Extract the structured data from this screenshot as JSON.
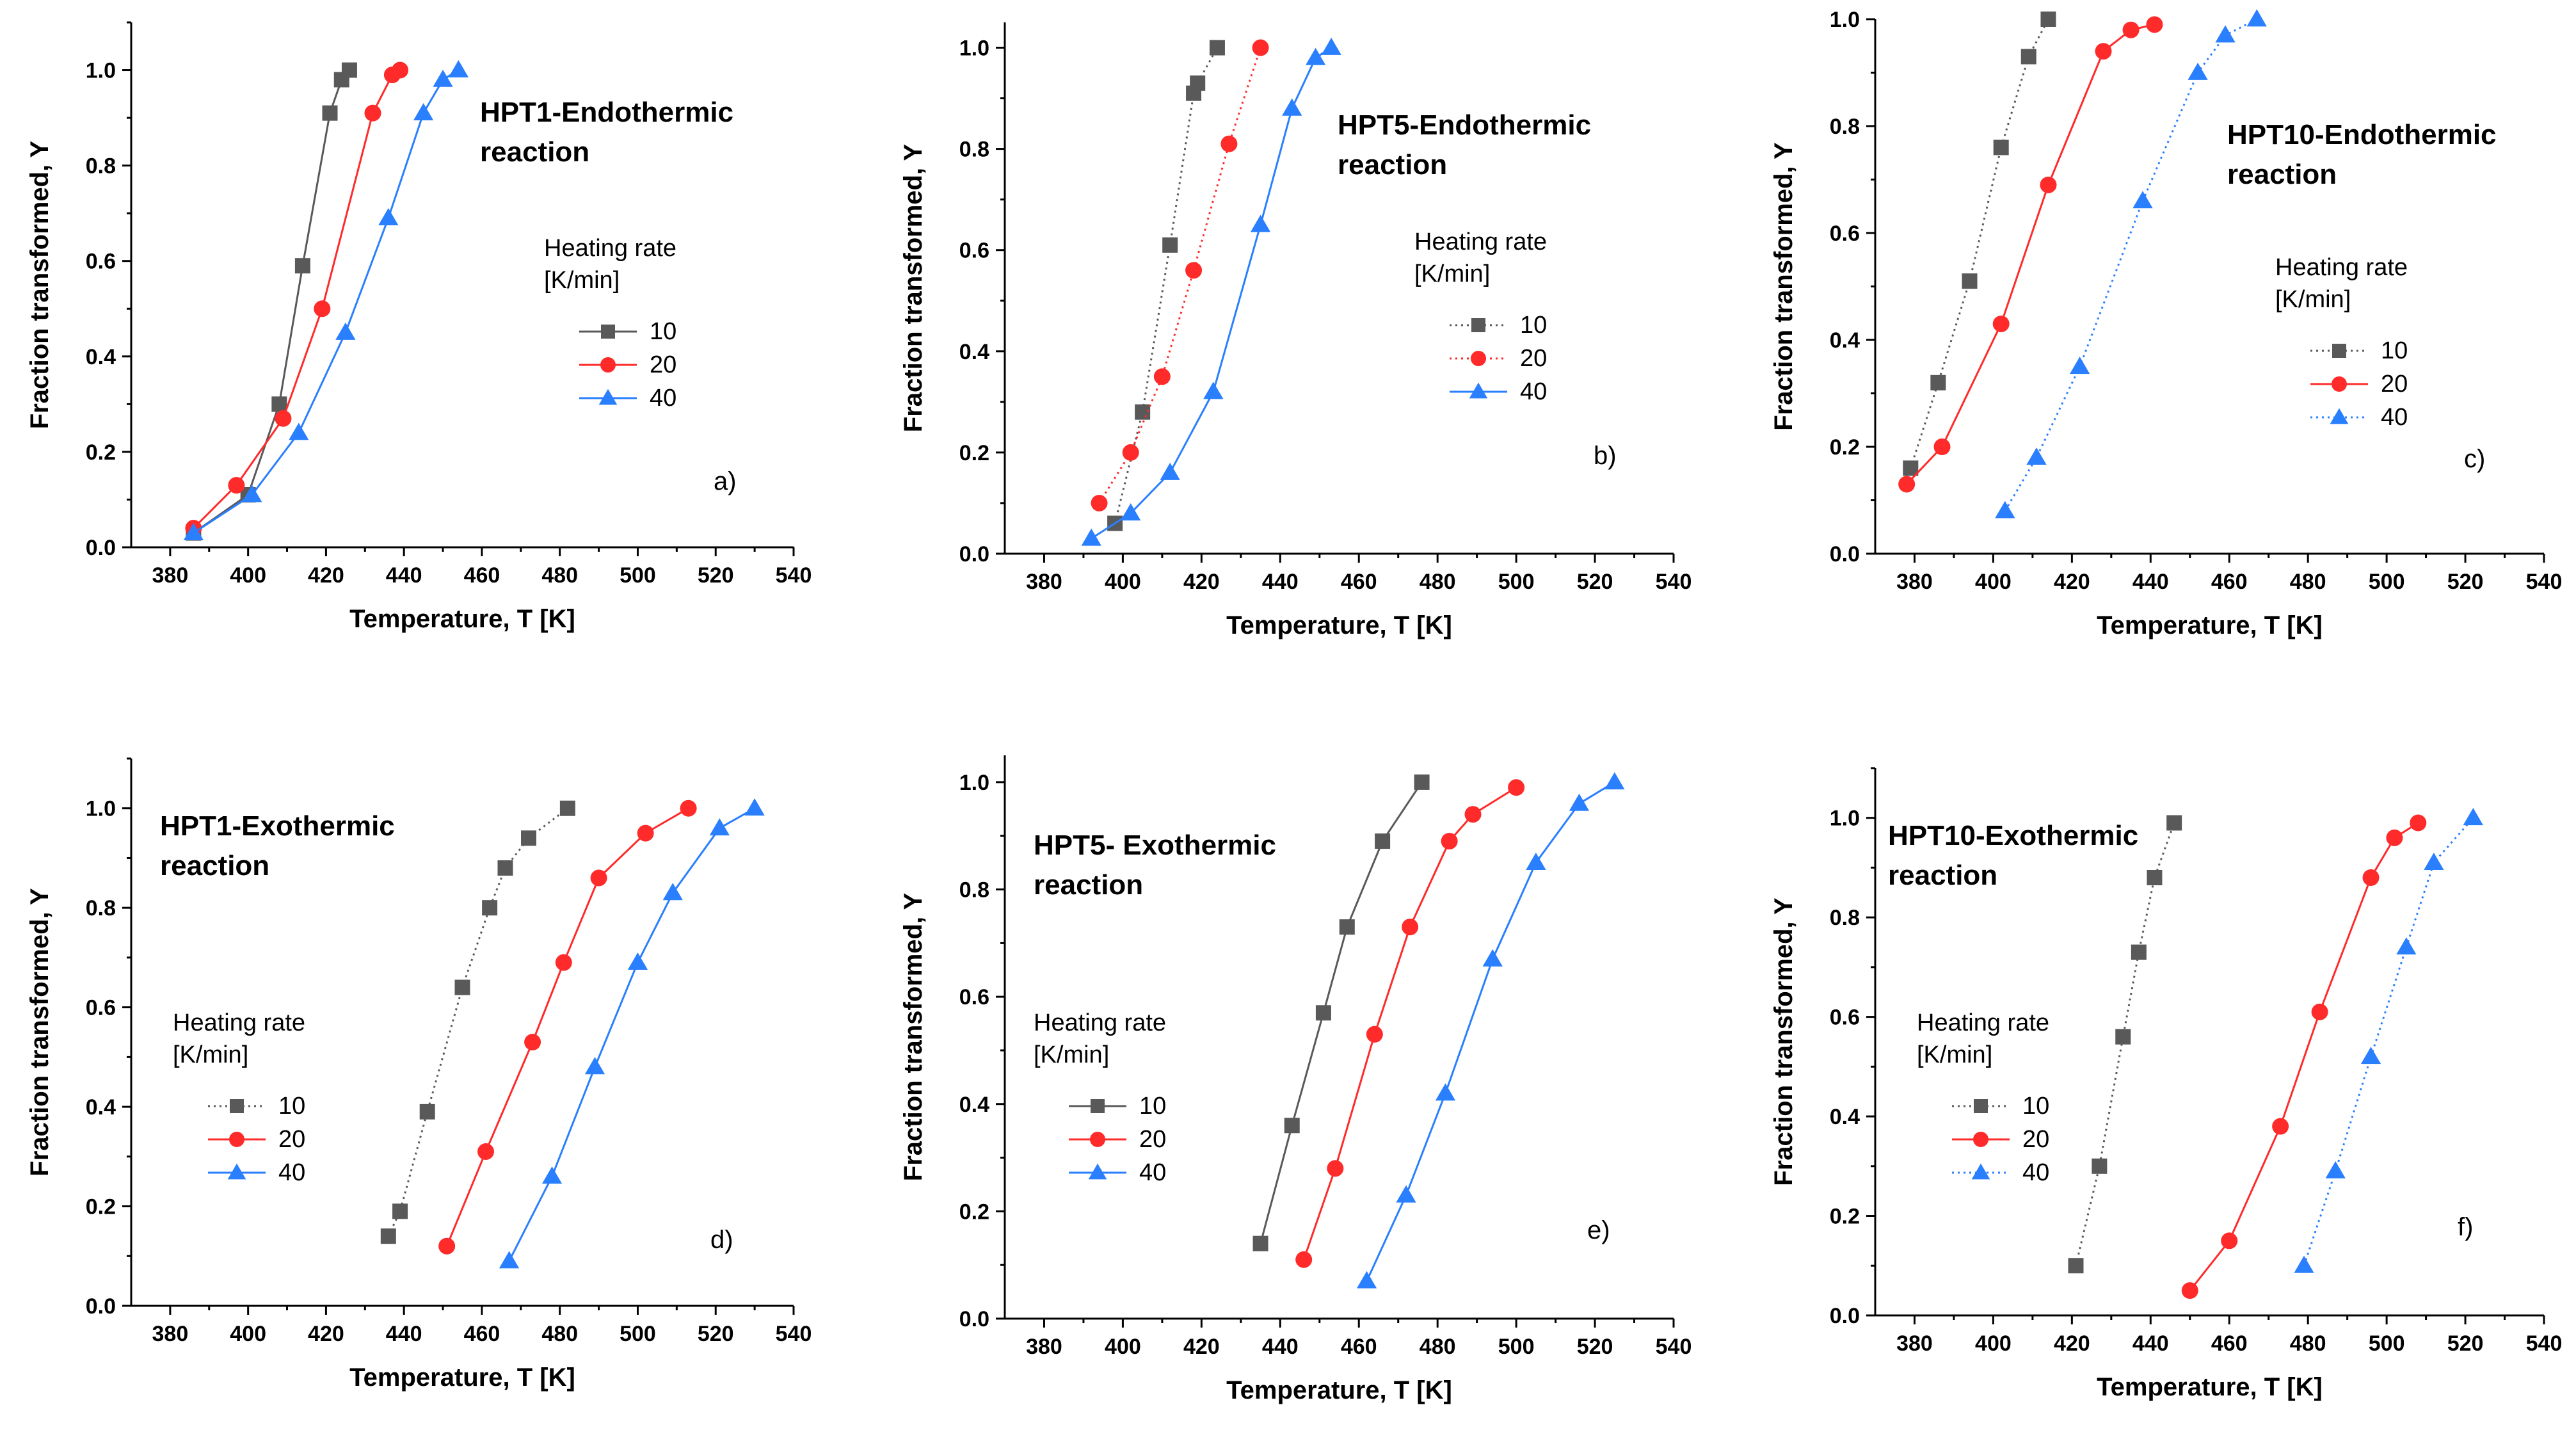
{
  "chart_data": [
    {
      "id": "a",
      "type": "line",
      "letter": "a)",
      "title_lines": [
        "HPT1-Endothermic",
        "reaction"
      ],
      "xlabel": "Temperature, T [K]",
      "ylabel": "Fraction transformed, Y",
      "xlim": [
        370,
        540
      ],
      "ylim": [
        0,
        1.1
      ],
      "xticks": [
        380,
        400,
        420,
        440,
        460,
        480,
        500,
        520,
        540
      ],
      "yticks": [
        0.0,
        0.2,
        0.4,
        0.6,
        0.8,
        1.0
      ],
      "legend_title_lines": [
        "Heating rate",
        "[K/min]"
      ],
      "series": [
        {
          "name": "10",
          "color": "#595959",
          "marker": "square",
          "line": "solid",
          "x": [
            386,
            400,
            408,
            414,
            421,
            424,
            426
          ],
          "y": [
            0.03,
            0.11,
            0.3,
            0.59,
            0.91,
            0.98,
            1.0
          ]
        },
        {
          "name": "20",
          "color": "#ff2a2a",
          "marker": "circle",
          "line": "solid",
          "x": [
            386,
            397,
            409,
            419,
            432,
            437,
            439
          ],
          "y": [
            0.04,
            0.13,
            0.27,
            0.5,
            0.91,
            0.99,
            1.0
          ]
        },
        {
          "name": "40",
          "color": "#2a7fff",
          "marker": "triangle",
          "line": "solid",
          "x": [
            386,
            401,
            413,
            425,
            436,
            445,
            450,
            454
          ],
          "y": [
            0.03,
            0.11,
            0.24,
            0.45,
            0.69,
            0.91,
            0.98,
            1.0
          ]
        }
      ]
    },
    {
      "id": "b",
      "type": "line",
      "letter": "b)",
      "title_lines": [
        "HPT5-Endothermic",
        "reaction"
      ],
      "xlabel": "Temperature, T [K]",
      "ylabel": "Fraction transformed, Y",
      "xlim": [
        370,
        540
      ],
      "ylim": [
        0,
        1.05
      ],
      "xticks": [
        380,
        400,
        420,
        440,
        460,
        480,
        500,
        520,
        540
      ],
      "yticks": [
        0.0,
        0.2,
        0.4,
        0.6,
        0.8,
        1.0
      ],
      "legend_title_lines": [
        "Heating rate",
        "[K/min]"
      ],
      "series": [
        {
          "name": "10",
          "color": "#595959",
          "marker": "square",
          "line": "dotted",
          "x": [
            398,
            405,
            412,
            418,
            419,
            424
          ],
          "y": [
            0.06,
            0.28,
            0.61,
            0.91,
            0.93,
            1.0
          ]
        },
        {
          "name": "20",
          "color": "#ff2a2a",
          "marker": "circle",
          "line": "dotted",
          "x": [
            394,
            402,
            410,
            418,
            427,
            435
          ],
          "y": [
            0.1,
            0.2,
            0.35,
            0.56,
            0.81,
            1.0
          ]
        },
        {
          "name": "40",
          "color": "#2a7fff",
          "marker": "triangle",
          "line": "solid",
          "x": [
            392,
            402,
            412,
            423,
            435,
            443,
            449,
            453
          ],
          "y": [
            0.03,
            0.08,
            0.16,
            0.32,
            0.65,
            0.88,
            0.98,
            1.0
          ]
        }
      ]
    },
    {
      "id": "c",
      "type": "line",
      "letter": "c)",
      "title_lines": [
        "HPT10-Endothermic",
        "reaction"
      ],
      "xlabel": "Temperature, T [K]",
      "ylabel": "Fraction transformed, Y",
      "xlim": [
        370,
        540
      ],
      "ylim": [
        0,
        1.0
      ],
      "xticks": [
        380,
        400,
        420,
        440,
        460,
        480,
        500,
        520,
        540
      ],
      "yticks": [
        0.0,
        0.2,
        0.4,
        0.6,
        0.8,
        1.0
      ],
      "legend_title_lines": [
        "Heating rate",
        "[K/min]"
      ],
      "series": [
        {
          "name": "10",
          "color": "#595959",
          "marker": "square",
          "line": "dotted",
          "x": [
            379,
            386,
            394,
            402,
            409,
            414
          ],
          "y": [
            0.16,
            0.32,
            0.51,
            0.76,
            0.93,
            1.0
          ]
        },
        {
          "name": "20",
          "color": "#ff2a2a",
          "marker": "circle",
          "line": "solid",
          "x": [
            378,
            387,
            402,
            414,
            428,
            435,
            441
          ],
          "y": [
            0.13,
            0.2,
            0.43,
            0.69,
            0.94,
            0.98,
            0.99
          ]
        },
        {
          "name": "40",
          "color": "#2a7fff",
          "marker": "triangle",
          "line": "dotted",
          "x": [
            403,
            411,
            422,
            438,
            452,
            459,
            467
          ],
          "y": [
            0.08,
            0.18,
            0.35,
            0.66,
            0.9,
            0.97,
            1.0
          ]
        }
      ]
    },
    {
      "id": "d",
      "type": "line",
      "letter": "d)",
      "title_lines": [
        "HPT1-Exothermic",
        "reaction"
      ],
      "xlabel": "Temperature, T [K]",
      "ylabel": "Fraction transformed, Y",
      "xlim": [
        370,
        540
      ],
      "ylim": [
        0,
        1.1
      ],
      "xticks": [
        380,
        400,
        420,
        440,
        460,
        480,
        500,
        520,
        540
      ],
      "yticks": [
        0.0,
        0.2,
        0.4,
        0.6,
        0.8,
        1.0
      ],
      "legend_title_lines": [
        "Heating rate",
        "[K/min]"
      ],
      "series": [
        {
          "name": "10",
          "color": "#595959",
          "marker": "square",
          "line": "dotted",
          "x": [
            436,
            439,
            446,
            455,
            462,
            466,
            472,
            482
          ],
          "y": [
            0.14,
            0.19,
            0.39,
            0.64,
            0.8,
            0.88,
            0.94,
            1.0
          ]
        },
        {
          "name": "20",
          "color": "#ff2a2a",
          "marker": "circle",
          "line": "solid",
          "x": [
            451,
            461,
            473,
            481,
            490,
            502,
            513
          ],
          "y": [
            0.12,
            0.31,
            0.53,
            0.69,
            0.86,
            0.95,
            1.0
          ]
        },
        {
          "name": "40",
          "color": "#2a7fff",
          "marker": "triangle",
          "line": "solid",
          "x": [
            467,
            478,
            489,
            500,
            509,
            521,
            530
          ],
          "y": [
            0.09,
            0.26,
            0.48,
            0.69,
            0.83,
            0.96,
            1.0
          ]
        }
      ]
    },
    {
      "id": "e",
      "type": "line",
      "letter": "e)",
      "title_lines": [
        "HPT5- Exothermic",
        "reaction"
      ],
      "xlabel": "Temperature, T [K]",
      "ylabel": "Fraction transformed, Y",
      "xlim": [
        370,
        540
      ],
      "ylim": [
        0,
        1.05
      ],
      "xticks": [
        380,
        400,
        420,
        440,
        460,
        480,
        500,
        520,
        540
      ],
      "yticks": [
        0.0,
        0.2,
        0.4,
        0.6,
        0.8,
        1.0
      ],
      "legend_title_lines": [
        "Heating rate",
        "[K/min]"
      ],
      "series": [
        {
          "name": "10",
          "color": "#595959",
          "marker": "square",
          "line": "solid",
          "x": [
            435,
            443,
            451,
            457,
            466,
            476
          ],
          "y": [
            0.14,
            0.36,
            0.57,
            0.73,
            0.89,
            1.0
          ]
        },
        {
          "name": "20",
          "color": "#ff2a2a",
          "marker": "circle",
          "line": "solid",
          "x": [
            446,
            454,
            464,
            473,
            483,
            489,
            500
          ],
          "y": [
            0.11,
            0.28,
            0.53,
            0.73,
            0.89,
            0.94,
            0.99
          ]
        },
        {
          "name": "40",
          "color": "#2a7fff",
          "marker": "triangle",
          "line": "solid",
          "x": [
            462,
            472,
            482,
            494,
            505,
            516,
            525
          ],
          "y": [
            0.07,
            0.23,
            0.42,
            0.67,
            0.85,
            0.96,
            1.0
          ]
        }
      ]
    },
    {
      "id": "f",
      "type": "line",
      "letter": "f)",
      "title_lines": [
        "HPT10-Exothermic",
        "reaction"
      ],
      "xlabel": "Temperature, T [K]",
      "ylabel": "Fraction transformed, Y",
      "xlim": [
        370,
        540
      ],
      "ylim": [
        0,
        1.1
      ],
      "xticks": [
        380,
        400,
        420,
        440,
        460,
        480,
        500,
        520,
        540
      ],
      "yticks": [
        0.0,
        0.2,
        0.4,
        0.6,
        0.8,
        1.0
      ],
      "legend_title_lines": [
        "Heating rate",
        "[K/min]"
      ],
      "series": [
        {
          "name": "10",
          "color": "#595959",
          "marker": "square",
          "line": "dotted",
          "x": [
            421,
            427,
            433,
            437,
            441,
            446
          ],
          "y": [
            0.1,
            0.3,
            0.56,
            0.73,
            0.88,
            0.99
          ]
        },
        {
          "name": "20",
          "color": "#ff2a2a",
          "marker": "circle",
          "line": "solid",
          "x": [
            450,
            460,
            473,
            483,
            496,
            502,
            508
          ],
          "y": [
            0.05,
            0.15,
            0.38,
            0.61,
            0.88,
            0.96,
            0.99
          ]
        },
        {
          "name": "40",
          "color": "#2a7fff",
          "marker": "triangle",
          "line": "dotted",
          "x": [
            479,
            487,
            496,
            505,
            512,
            522
          ],
          "y": [
            0.1,
            0.29,
            0.52,
            0.74,
            0.91,
            1.0
          ]
        }
      ]
    }
  ]
}
